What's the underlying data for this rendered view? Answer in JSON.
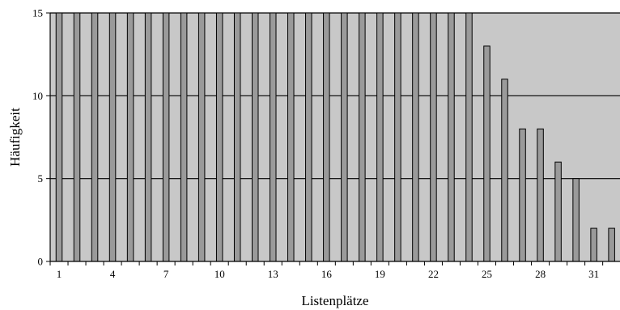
{
  "chart_data": {
    "type": "bar",
    "xlabel": "Listenplätze",
    "ylabel": "Häufigkeit",
    "ylim": [
      0,
      15
    ],
    "yticks": [
      0,
      5,
      10,
      15
    ],
    "grid": true,
    "x": [
      1,
      2,
      3,
      4,
      5,
      6,
      7,
      8,
      9,
      10,
      11,
      12,
      13,
      14,
      15,
      16,
      17,
      18,
      19,
      20,
      21,
      22,
      23,
      24,
      25,
      26,
      27,
      28,
      29,
      30,
      31,
      32
    ],
    "x_tick_labels": [
      "1",
      "4",
      "7",
      "10",
      "13",
      "16",
      "19",
      "22",
      "25",
      "28",
      "31"
    ],
    "values": [
      15,
      15,
      15,
      15,
      15,
      15,
      15,
      15,
      15,
      15,
      15,
      15,
      15,
      15,
      15,
      15,
      15,
      15,
      15,
      15,
      15,
      15,
      15,
      15,
      13,
      11,
      8,
      8,
      6,
      5,
      2,
      2
    ],
    "colors": {
      "plot_background": "#c8c8c8",
      "bar_fill": "#9a9a9a",
      "bar_stroke": "#000000",
      "grid": "#000000"
    }
  }
}
